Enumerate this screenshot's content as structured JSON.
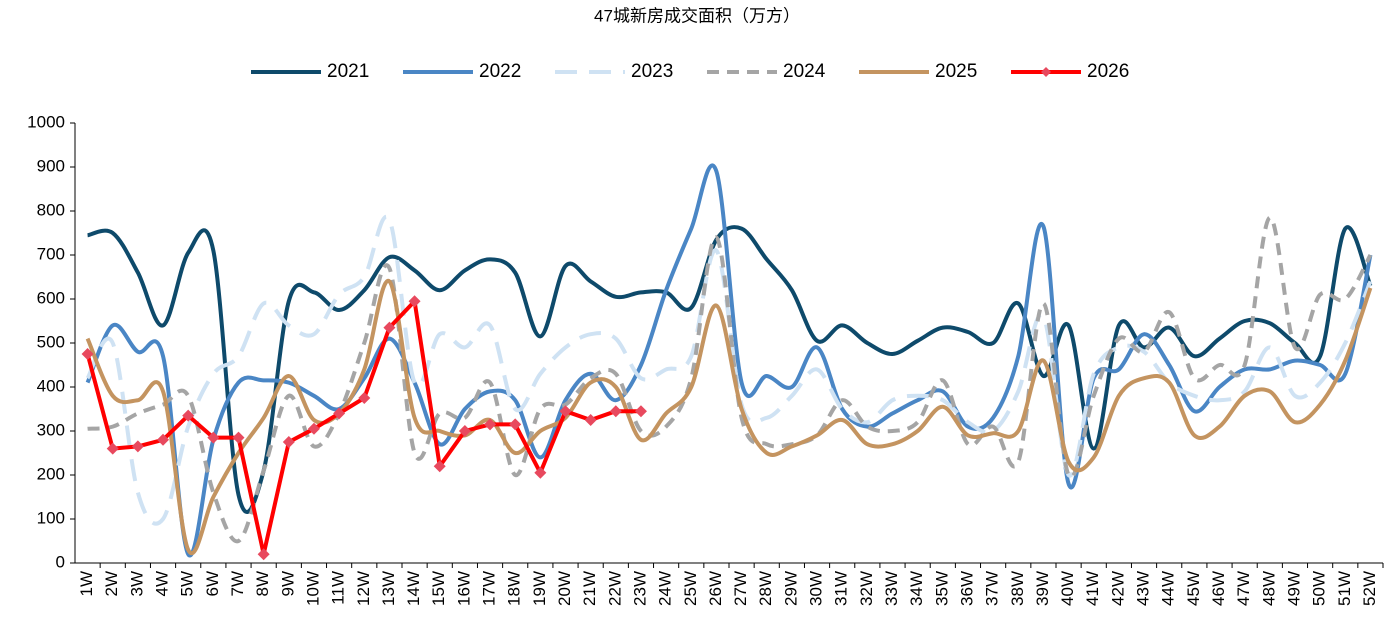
{
  "chart_data": {
    "type": "line",
    "title": "47城新房成交面积（万方）",
    "smooth": true,
    "categories": [
      "1W",
      "2W",
      "3W",
      "4W",
      "5W",
      "6W",
      "7W",
      "8W",
      "9W",
      "10W",
      "11W",
      "12W",
      "13W",
      "14W",
      "15W",
      "16W",
      "17W",
      "18W",
      "19W",
      "20W",
      "21W",
      "22W",
      "23W",
      "24W",
      "25W",
      "26W",
      "27W",
      "28W",
      "29W",
      "30W",
      "31W",
      "32W",
      "33W",
      "34W",
      "35W",
      "36W",
      "37W",
      "38W",
      "39W",
      "40W",
      "41W",
      "42W",
      "43W",
      "44W",
      "45W",
      "46W",
      "47W",
      "48W",
      "49W",
      "50W",
      "51W",
      "52W"
    ],
    "ylim": [
      0,
      1000
    ],
    "yticks": [
      0,
      100,
      200,
      300,
      400,
      500,
      600,
      700,
      800,
      900,
      1000
    ],
    "series": [
      {
        "name": "2021",
        "color": "#0e4a6b",
        "values": [
          745,
          750,
          660,
          540,
          705,
          710,
          155,
          210,
          595,
          615,
          575,
          620,
          695,
          665,
          620,
          665,
          690,
          660,
          515,
          675,
          640,
          605,
          615,
          615,
          580,
          735,
          760,
          690,
          620,
          505,
          540,
          500,
          475,
          505,
          535,
          525,
          500,
          590,
          425,
          540,
          260,
          540,
          490,
          535,
          470,
          510,
          550,
          545,
          500,
          470,
          760,
          630
        ]
      },
      {
        "name": "2022",
        "color": "#4a86c5",
        "values": [
          410,
          540,
          480,
          470,
          20,
          280,
          410,
          415,
          410,
          380,
          350,
          420,
          510,
          410,
          270,
          350,
          390,
          370,
          240,
          370,
          430,
          370,
          450,
          620,
          760,
          890,
          410,
          425,
          400,
          490,
          350,
          310,
          340,
          370,
          390,
          310,
          330,
          470,
          765,
          180,
          420,
          440,
          520,
          450,
          345,
          400,
          440,
          440,
          460,
          450,
          430,
          700
        ]
      },
      {
        "name": "2023",
        "color": "#cfe2f3",
        "dash": true,
        "values": [
          420,
          500,
          160,
          100,
          310,
          430,
          470,
          590,
          540,
          520,
          610,
          650,
          780,
          410,
          520,
          490,
          540,
          350,
          430,
          490,
          520,
          510,
          420,
          440,
          470,
          710,
          360,
          330,
          380,
          440,
          350,
          320,
          370,
          380,
          370,
          320,
          300,
          390,
          560,
          200,
          430,
          490,
          480,
          410,
          380,
          370,
          390,
          490,
          380,
          410,
          500,
          640
        ]
      },
      {
        "name": "2024",
        "color": "#a5a5a5",
        "dash": true,
        "values": [
          305,
          310,
          340,
          360,
          380,
          160,
          50,
          210,
          380,
          265,
          340,
          500,
          670,
          250,
          340,
          330,
          410,
          200,
          350,
          360,
          420,
          430,
          300,
          310,
          420,
          740,
          330,
          270,
          270,
          290,
          370,
          310,
          300,
          320,
          415,
          270,
          310,
          230,
          590,
          200,
          380,
          510,
          480,
          570,
          420,
          450,
          450,
          785,
          490,
          610,
          600,
          700
        ]
      },
      {
        "name": "2025",
        "color": "#c49460",
        "values": [
          510,
          380,
          370,
          390,
          30,
          150,
          250,
          330,
          425,
          325,
          340,
          440,
          640,
          330,
          300,
          290,
          325,
          250,
          300,
          330,
          410,
          400,
          280,
          340,
          400,
          585,
          350,
          250,
          265,
          290,
          325,
          270,
          270,
          300,
          355,
          290,
          295,
          300,
          460,
          230,
          240,
          380,
          420,
          410,
          290,
          310,
          380,
          390,
          320,
          360,
          460,
          625
        ]
      },
      {
        "name": "2026",
        "color": "#ff0000",
        "marker_color": "#e8495e",
        "markers": true,
        "values": [
          475,
          260,
          265,
          280,
          335,
          285,
          285,
          20,
          275,
          305,
          340,
          375,
          535,
          595,
          220,
          300,
          315,
          315,
          205,
          345,
          325,
          345,
          345,
          null,
          null,
          null,
          null,
          null,
          null,
          null,
          null,
          null,
          null,
          null,
          null,
          null,
          null,
          null,
          null,
          null,
          null,
          null,
          null,
          null,
          null,
          null,
          null,
          null,
          null,
          null,
          null,
          null
        ]
      }
    ]
  }
}
